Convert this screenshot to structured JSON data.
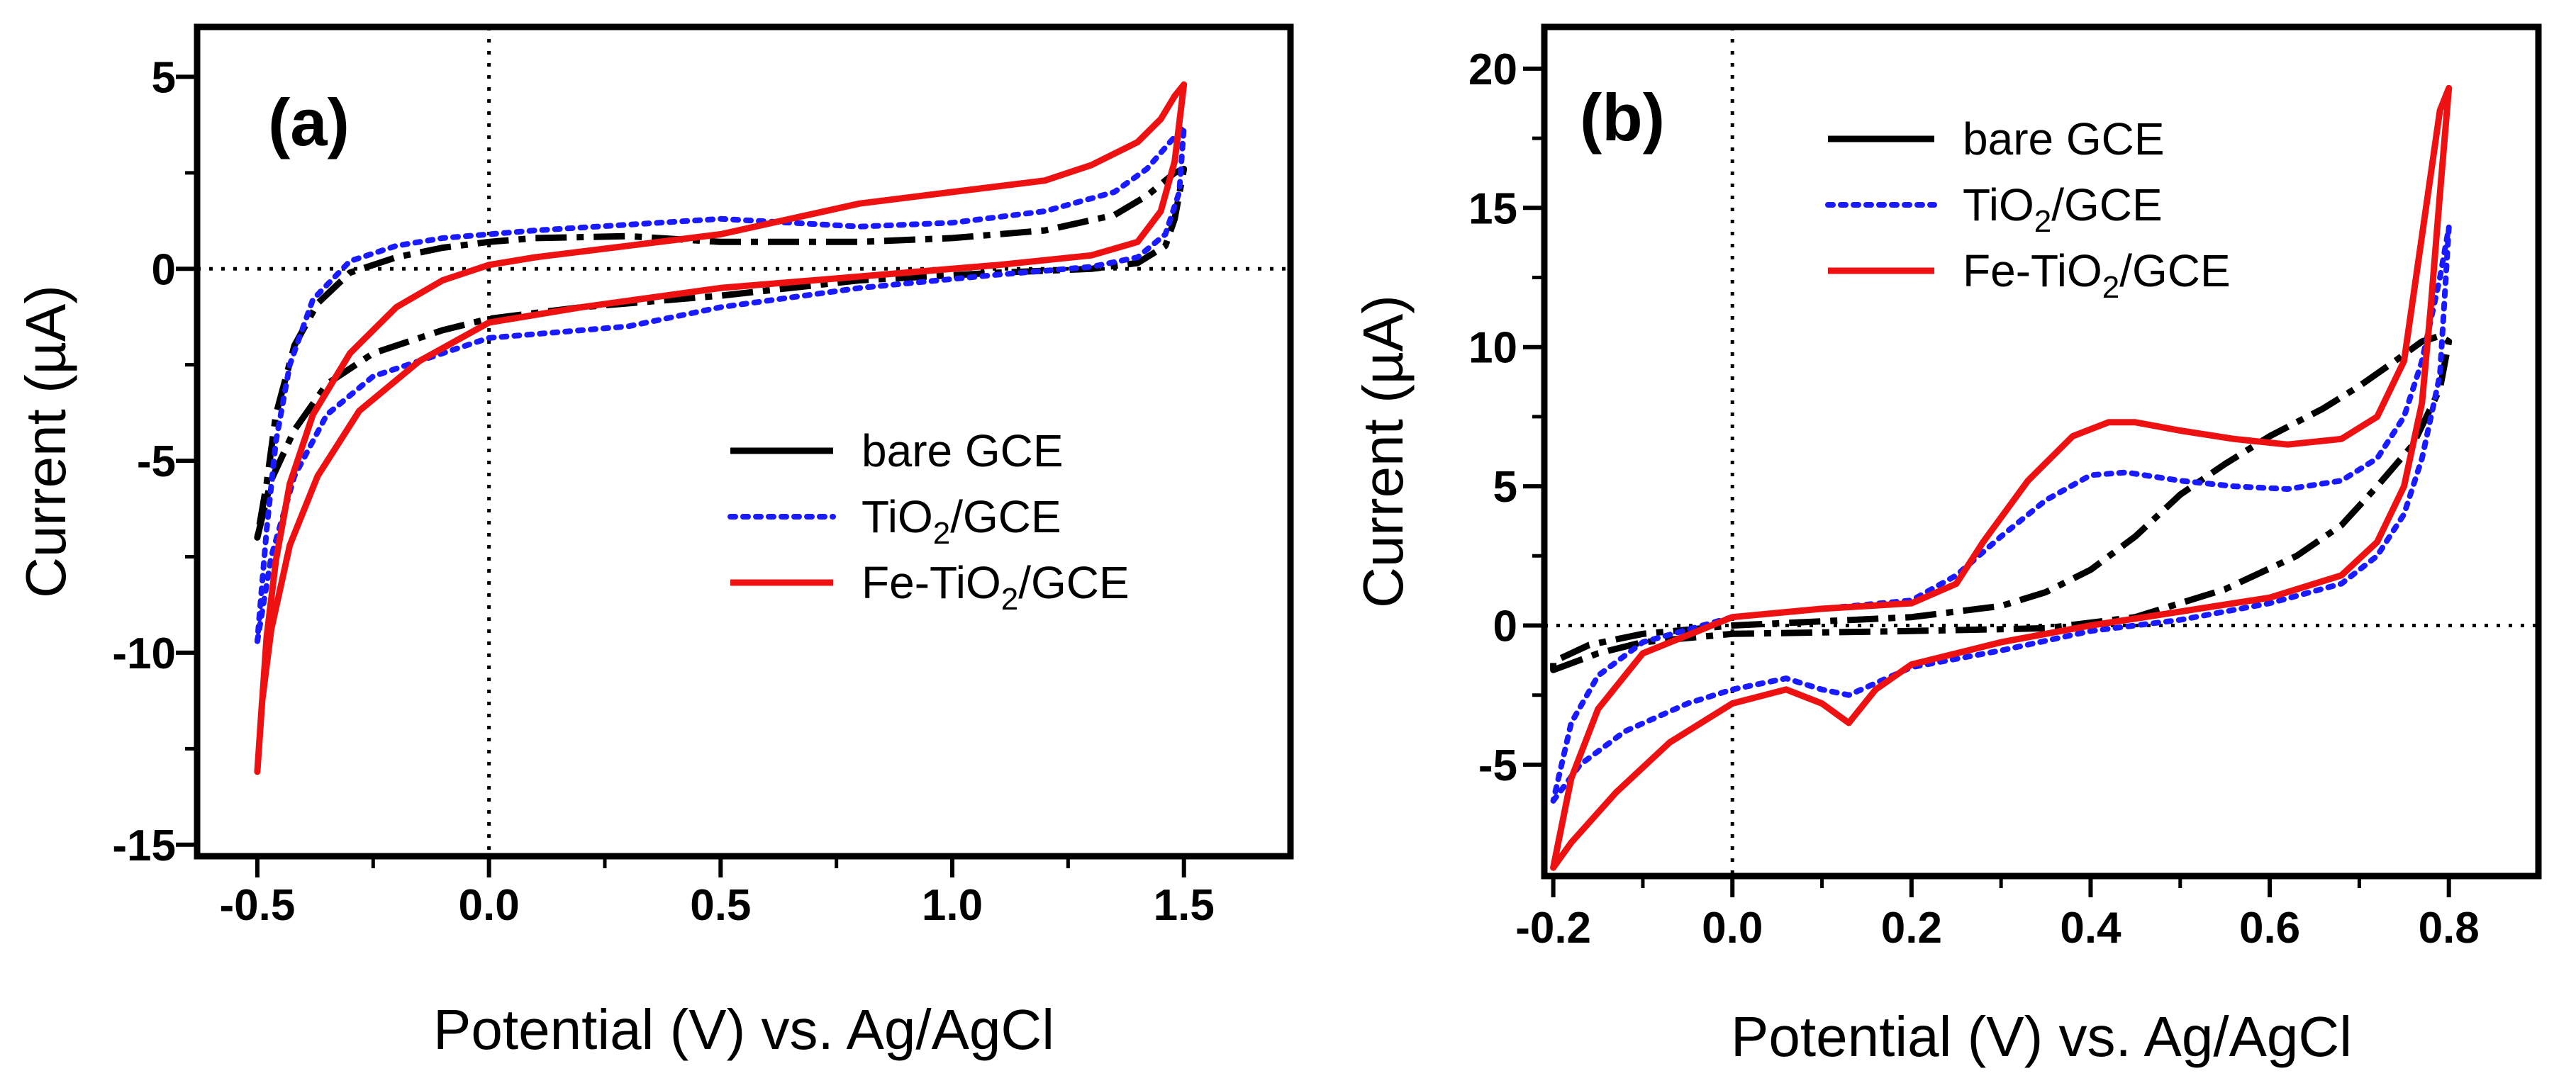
{
  "figure": {
    "colors": {
      "bare": "#000000",
      "tio2": "#1a1aff",
      "fe": "#ee1111"
    }
  },
  "chart_data": [
    {
      "type": "line",
      "panel_label": "(a)",
      "xlabel": "Potential (V) vs. Ag/AgCl",
      "ylabel": "Current (µA)",
      "xlim": [
        -0.63,
        1.73
      ],
      "ylim": [
        -15.3,
        6.3
      ],
      "xticks": [
        -0.5,
        0.0,
        0.5,
        1.0,
        1.5
      ],
      "xtick_labels": [
        "-0.5",
        "0.0",
        "0.5",
        "1.0",
        "1.5"
      ],
      "xticks_minor": [
        -0.25,
        0.25,
        0.75,
        1.25
      ],
      "yticks": [
        -15,
        -10,
        -5,
        0,
        5
      ],
      "ytick_labels": [
        "-15",
        "-10",
        "-5",
        "0",
        "5"
      ],
      "yticks_minor": [
        -12.5,
        -7.5,
        -2.5,
        2.5
      ],
      "reference_lines": {
        "x": 0,
        "y": 0
      },
      "legend_position": "lower-right",
      "legend": [
        {
          "key": "bare",
          "label": "bare GCE",
          "sub": ""
        },
        {
          "key": "tio2",
          "label_pre": "TiO",
          "sub": "2",
          "label_post": "/GCE"
        },
        {
          "key": "fe",
          "label_pre": "Fe-TiO",
          "sub": "2",
          "label_post": "/GCE"
        }
      ],
      "series": [
        {
          "name": "bare GCE",
          "key": "bare",
          "style": "dashdot",
          "points": [
            [
              -0.5,
              -7.0
            ],
            [
              -0.47,
              -5.5
            ],
            [
              -0.42,
              -4.2
            ],
            [
              -0.35,
              -3.0
            ],
            [
              -0.25,
              -2.2
            ],
            [
              -0.1,
              -1.6
            ],
            [
              0.0,
              -1.3
            ],
            [
              0.2,
              -1.0
            ],
            [
              0.5,
              -0.7
            ],
            [
              0.8,
              -0.3
            ],
            [
              1.1,
              -0.1
            ],
            [
              1.3,
              0.0
            ],
            [
              1.4,
              0.15
            ],
            [
              1.46,
              0.6
            ],
            [
              1.48,
              1.3
            ],
            [
              1.5,
              2.6
            ],
            [
              1.48,
              2.5
            ],
            [
              1.42,
              1.9
            ],
            [
              1.35,
              1.4
            ],
            [
              1.2,
              1.0
            ],
            [
              1.0,
              0.8
            ],
            [
              0.8,
              0.7
            ],
            [
              0.5,
              0.7
            ],
            [
              0.3,
              0.85
            ],
            [
              0.1,
              0.8
            ],
            [
              0.0,
              0.7
            ],
            [
              -0.1,
              0.55
            ],
            [
              -0.2,
              0.3
            ],
            [
              -0.3,
              -0.1
            ],
            [
              -0.37,
              -0.9
            ],
            [
              -0.42,
              -2.0
            ],
            [
              -0.46,
              -3.8
            ],
            [
              -0.48,
              -5.6
            ],
            [
              -0.5,
              -7.0
            ]
          ]
        },
        {
          "name": "TiO2/GCE",
          "key": "tio2",
          "style": "dotted",
          "points": [
            [
              -0.5,
              -9.7
            ],
            [
              -0.47,
              -7.5
            ],
            [
              -0.42,
              -5.4
            ],
            [
              -0.35,
              -3.8
            ],
            [
              -0.25,
              -2.8
            ],
            [
              -0.1,
              -2.2
            ],
            [
              0.0,
              -1.8
            ],
            [
              0.2,
              -1.6
            ],
            [
              0.3,
              -1.5
            ],
            [
              0.5,
              -1.0
            ],
            [
              0.8,
              -0.5
            ],
            [
              1.1,
              -0.15
            ],
            [
              1.3,
              0.05
            ],
            [
              1.4,
              0.3
            ],
            [
              1.46,
              0.9
            ],
            [
              1.49,
              2.0
            ],
            [
              1.5,
              3.7
            ],
            [
              1.47,
              3.3
            ],
            [
              1.42,
              2.6
            ],
            [
              1.35,
              2.0
            ],
            [
              1.2,
              1.5
            ],
            [
              1.0,
              1.2
            ],
            [
              0.8,
              1.1
            ],
            [
              0.5,
              1.3
            ],
            [
              0.3,
              1.15
            ],
            [
              0.1,
              1.0
            ],
            [
              0.0,
              0.9
            ],
            [
              -0.1,
              0.8
            ],
            [
              -0.2,
              0.6
            ],
            [
              -0.3,
              0.2
            ],
            [
              -0.38,
              -0.8
            ],
            [
              -0.43,
              -2.5
            ],
            [
              -0.46,
              -4.5
            ],
            [
              -0.48,
              -6.8
            ],
            [
              -0.5,
              -9.7
            ]
          ]
        },
        {
          "name": "Fe-TiO2/GCE",
          "key": "fe",
          "style": "solid",
          "points": [
            [
              -0.5,
              -13.1
            ],
            [
              -0.49,
              -11.3
            ],
            [
              -0.47,
              -9.4
            ],
            [
              -0.43,
              -7.2
            ],
            [
              -0.37,
              -5.4
            ],
            [
              -0.28,
              -3.7
            ],
            [
              -0.15,
              -2.4
            ],
            [
              0.0,
              -1.4
            ],
            [
              0.2,
              -1.0
            ],
            [
              0.5,
              -0.5
            ],
            [
              0.8,
              -0.2
            ],
            [
              1.1,
              0.1
            ],
            [
              1.3,
              0.35
            ],
            [
              1.4,
              0.7
            ],
            [
              1.45,
              1.5
            ],
            [
              1.48,
              2.8
            ],
            [
              1.5,
              4.8
            ],
            [
              1.48,
              4.5
            ],
            [
              1.45,
              3.9
            ],
            [
              1.4,
              3.3
            ],
            [
              1.3,
              2.7
            ],
            [
              1.2,
              2.3
            ],
            [
              1.0,
              2.0
            ],
            [
              0.8,
              1.7
            ],
            [
              0.5,
              0.9
            ],
            [
              0.3,
              0.6
            ],
            [
              0.1,
              0.3
            ],
            [
              0.0,
              0.1
            ],
            [
              -0.1,
              -0.3
            ],
            [
              -0.2,
              -1.0
            ],
            [
              -0.3,
              -2.2
            ],
            [
              -0.38,
              -3.8
            ],
            [
              -0.43,
              -5.6
            ],
            [
              -0.46,
              -7.6
            ],
            [
              -0.48,
              -9.6
            ],
            [
              -0.5,
              -13.1
            ]
          ]
        }
      ]
    },
    {
      "type": "line",
      "panel_label": "(b)",
      "xlabel": "Potential (V) vs. Ag/AgCl",
      "ylabel": "Current (µA)",
      "xlim": [
        -0.21,
        0.9
      ],
      "ylim": [
        -9.0,
        21.5
      ],
      "xticks": [
        -0.2,
        0.0,
        0.2,
        0.4,
        0.6,
        0.8
      ],
      "xtick_labels": [
        "-0.2",
        "0.0",
        "0.2",
        "0.4",
        "0.6",
        "0.8"
      ],
      "xticks_minor": [
        -0.1,
        0.1,
        0.3,
        0.5,
        0.7
      ],
      "yticks": [
        -5,
        0,
        5,
        10,
        15,
        20
      ],
      "ytick_labels": [
        "-5",
        "0",
        "5",
        "10",
        "15",
        "20"
      ],
      "yticks_minor": [
        -2.5,
        2.5,
        7.5,
        12.5,
        17.5
      ],
      "reference_lines": {
        "x": 0,
        "y": 0
      },
      "legend_position": "top-center",
      "legend": [
        {
          "key": "bare",
          "label": "bare GCE",
          "sub": ""
        },
        {
          "key": "tio2",
          "label_pre": "TiO",
          "sub": "2",
          "label_post": "/GCE"
        },
        {
          "key": "fe",
          "label_pre": "Fe-TiO",
          "sub": "2",
          "label_post": "/GCE"
        }
      ],
      "series": [
        {
          "name": "bare GCE",
          "key": "bare",
          "style": "dashdot",
          "points": [
            [
              -0.2,
              -1.6
            ],
            [
              -0.15,
              -1.0
            ],
            [
              -0.1,
              -0.6
            ],
            [
              0.0,
              -0.3
            ],
            [
              0.2,
              -0.2
            ],
            [
              0.35,
              -0.1
            ],
            [
              0.45,
              0.3
            ],
            [
              0.55,
              1.3
            ],
            [
              0.63,
              2.5
            ],
            [
              0.68,
              3.6
            ],
            [
              0.72,
              5.0
            ],
            [
              0.76,
              6.5
            ],
            [
              0.79,
              8.5
            ],
            [
              0.8,
              10.2
            ],
            [
              0.79,
              10.4
            ],
            [
              0.77,
              10.2
            ],
            [
              0.74,
              9.5
            ],
            [
              0.7,
              8.6
            ],
            [
              0.66,
              7.8
            ],
            [
              0.6,
              6.8
            ],
            [
              0.55,
              5.8
            ],
            [
              0.5,
              4.7
            ],
            [
              0.45,
              3.2
            ],
            [
              0.4,
              2.0
            ],
            [
              0.35,
              1.2
            ],
            [
              0.3,
              0.7
            ],
            [
              0.2,
              0.3
            ],
            [
              0.0,
              0.0
            ],
            [
              -0.1,
              -0.3
            ],
            [
              -0.16,
              -0.7
            ],
            [
              -0.2,
              -1.3
            ]
          ]
        },
        {
          "name": "TiO2/GCE",
          "key": "tio2",
          "style": "dotted",
          "points": [
            [
              -0.2,
              -6.3
            ],
            [
              -0.17,
              -5.0
            ],
            [
              -0.12,
              -3.8
            ],
            [
              -0.05,
              -2.8
            ],
            [
              0.0,
              -2.3
            ],
            [
              0.06,
              -1.9
            ],
            [
              0.1,
              -2.3
            ],
            [
              0.13,
              -2.5
            ],
            [
              0.2,
              -1.5
            ],
            [
              0.3,
              -0.9
            ],
            [
              0.4,
              -0.2
            ],
            [
              0.5,
              0.2
            ],
            [
              0.6,
              0.8
            ],
            [
              0.68,
              1.5
            ],
            [
              0.72,
              2.5
            ],
            [
              0.75,
              4.0
            ],
            [
              0.77,
              6.0
            ],
            [
              0.79,
              9.0
            ],
            [
              0.8,
              14.3
            ],
            [
              0.79,
              12.5
            ],
            [
              0.77,
              9.5
            ],
            [
              0.75,
              7.5
            ],
            [
              0.72,
              6.0
            ],
            [
              0.68,
              5.2
            ],
            [
              0.62,
              4.9
            ],
            [
              0.56,
              5.0
            ],
            [
              0.5,
              5.2
            ],
            [
              0.44,
              5.5
            ],
            [
              0.4,
              5.4
            ],
            [
              0.35,
              4.5
            ],
            [
              0.3,
              3.2
            ],
            [
              0.25,
              1.8
            ],
            [
              0.2,
              0.9
            ],
            [
              0.1,
              0.6
            ],
            [
              0.0,
              0.3
            ],
            [
              -0.1,
              -0.6
            ],
            [
              -0.15,
              -1.8
            ],
            [
              -0.18,
              -3.5
            ],
            [
              -0.2,
              -6.3
            ]
          ]
        },
        {
          "name": "Fe-TiO2/GCE",
          "key": "fe",
          "style": "solid",
          "points": [
            [
              -0.2,
              -8.7
            ],
            [
              -0.18,
              -7.8
            ],
            [
              -0.13,
              -6.0
            ],
            [
              -0.07,
              -4.2
            ],
            [
              0.0,
              -2.8
            ],
            [
              0.06,
              -2.3
            ],
            [
              0.1,
              -2.8
            ],
            [
              0.13,
              -3.5
            ],
            [
              0.16,
              -2.3
            ],
            [
              0.2,
              -1.4
            ],
            [
              0.3,
              -0.6
            ],
            [
              0.4,
              0.0
            ],
            [
              0.5,
              0.5
            ],
            [
              0.6,
              1.0
            ],
            [
              0.68,
              1.8
            ],
            [
              0.72,
              3.0
            ],
            [
              0.75,
              5.0
            ],
            [
              0.77,
              8.0
            ],
            [
              0.78,
              11.5
            ],
            [
              0.79,
              15.5
            ],
            [
              0.8,
              19.3
            ],
            [
              0.79,
              18.5
            ],
            [
              0.77,
              14.0
            ],
            [
              0.75,
              9.5
            ],
            [
              0.72,
              7.5
            ],
            [
              0.68,
              6.7
            ],
            [
              0.62,
              6.5
            ],
            [
              0.56,
              6.7
            ],
            [
              0.5,
              7.0
            ],
            [
              0.45,
              7.3
            ],
            [
              0.42,
              7.3
            ],
            [
              0.38,
              6.8
            ],
            [
              0.33,
              5.2
            ],
            [
              0.28,
              3.0
            ],
            [
              0.25,
              1.5
            ],
            [
              0.2,
              0.8
            ],
            [
              0.1,
              0.6
            ],
            [
              0.0,
              0.3
            ],
            [
              -0.1,
              -1.0
            ],
            [
              -0.15,
              -3.0
            ],
            [
              -0.18,
              -5.5
            ],
            [
              -0.2,
              -8.7
            ]
          ]
        }
      ]
    }
  ]
}
